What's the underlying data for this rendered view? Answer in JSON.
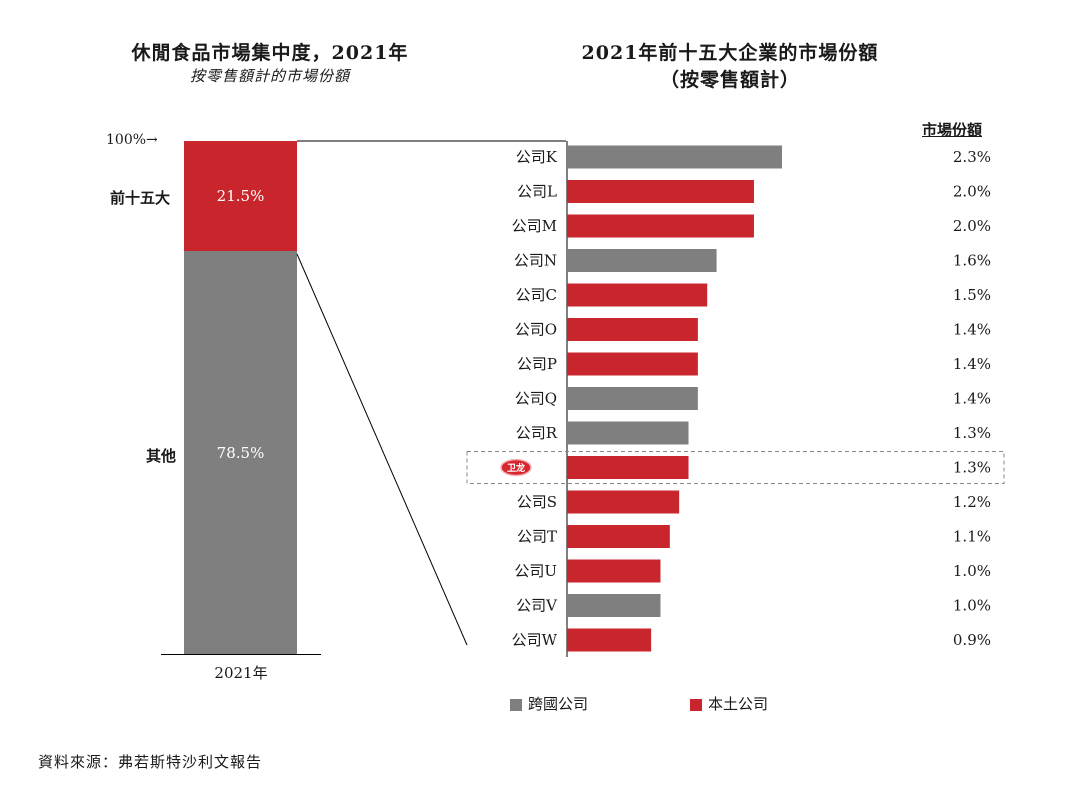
{
  "left_chart": {
    "title": "休閒食品市場集中度，2021年",
    "subtitle": "按零售額計的市場份額",
    "marker_label": "100%→",
    "x_label": "2021年"
  },
  "right_chart": {
    "title_line1": "2021年前十五大企業的市場份額",
    "title_line2": "（按零售額計）",
    "share_header": "市場份額",
    "legend": {
      "multinational": "跨國公司",
      "domestic": "本土公司"
    }
  },
  "colors": {
    "multinational": "#7f7f7f",
    "domestic": "#c9252d"
  },
  "source": "資料來源：弗若斯特沙利文報告",
  "chart_data": [
    {
      "type": "bar",
      "stacked": true,
      "categories": [
        "2021年"
      ],
      "series": [
        {
          "name": "前十五大",
          "values": [
            21.5
          ],
          "label": "21.5%",
          "color": "#c9252d"
        },
        {
          "name": "其他",
          "values": [
            78.5
          ],
          "label": "78.5%",
          "color": "#7f7f7f"
        }
      ],
      "ylim": [
        0,
        100
      ]
    },
    {
      "type": "bar",
      "orientation": "horizontal",
      "categories": [
        "公司K",
        "公司L",
        "公司M",
        "公司N",
        "公司C",
        "公司O",
        "公司P",
        "公司Q",
        "公司R",
        "",
        "公司S",
        "公司T",
        "公司U",
        "公司V",
        "公司W"
      ],
      "values": [
        2.3,
        2.0,
        2.0,
        1.6,
        1.5,
        1.4,
        1.4,
        1.4,
        1.3,
        1.3,
        1.2,
        1.1,
        1.0,
        1.0,
        0.9
      ],
      "labels": [
        "2.3%",
        "2.0%",
        "2.0%",
        "1.6%",
        "1.5%",
        "1.4%",
        "1.4%",
        "1.4%",
        "1.3%",
        "1.3%",
        "1.2%",
        "1.1%",
        "1.0%",
        "1.0%",
        "0.9%"
      ],
      "group": [
        "multinational",
        "domestic",
        "domestic",
        "multinational",
        "domestic",
        "domestic",
        "domestic",
        "multinational",
        "multinational",
        "domestic",
        "domestic",
        "domestic",
        "domestic",
        "multinational",
        "domestic"
      ],
      "highlighted_index": 9,
      "highlight_logo": "卫龙",
      "xlim": [
        0,
        2.3
      ]
    }
  ]
}
